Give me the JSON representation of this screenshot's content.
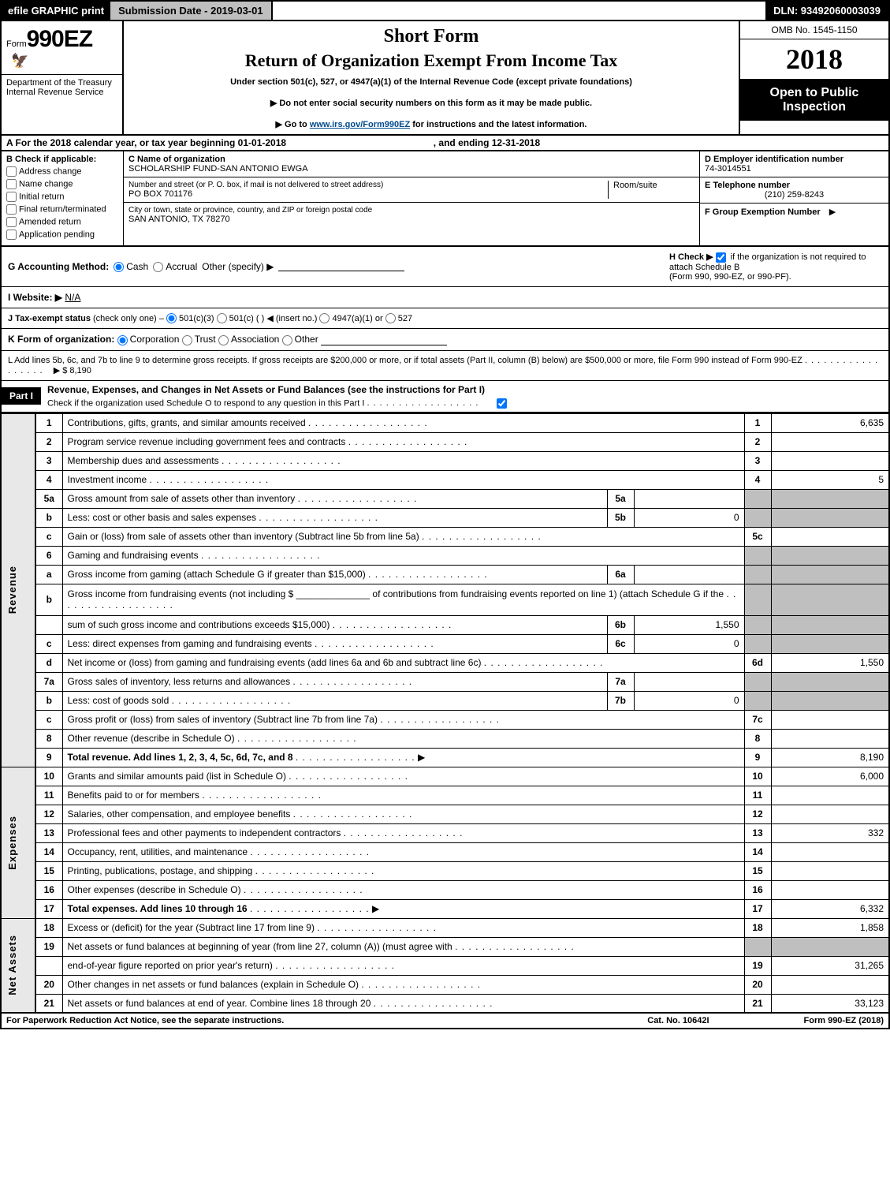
{
  "topbar": {
    "efile": "efile GRAPHIC print",
    "subdate_label": "Submission Date - 2019-03-01",
    "dln": "DLN: 93492060003039"
  },
  "header": {
    "form_word": "Form",
    "form_no": "990EZ",
    "short": "Short Form",
    "title": "Return of Organization Exempt From Income Tax",
    "under": "Under section 501(c), 527, or 4947(a)(1) of the Internal Revenue Code (except private foundations)",
    "ssn": "▶ Do not enter social security numbers on this form as it may be made public.",
    "goto_pre": "▶ Go to ",
    "goto_link": "www.irs.gov/Form990EZ",
    "goto_post": " for instructions and the latest information.",
    "dept1": "Department of the Treasury",
    "dept2": "Internal Revenue Service",
    "omb": "OMB No. 1545-1150",
    "year": "2018",
    "open": "Open to Public Inspection"
  },
  "rowA": {
    "text_pre": "A  For the 2018 calendar year, or tax year beginning ",
    "begin": "01-01-2018",
    "mid": ", and ending ",
    "end": "12-31-2018"
  },
  "boxB": {
    "hdr": "B  Check if applicable:",
    "items": [
      "Address change",
      "Name change",
      "Initial return",
      "Final return/terminated",
      "Amended return",
      "Application pending"
    ]
  },
  "boxC": {
    "label": "C Name of organization",
    "value": "SCHOLARSHIP FUND-SAN ANTONIO EWGA",
    "addr_label": "Number and street (or P. O. box, if mail is not delivered to street address)",
    "addr": "PO BOX 701176",
    "room_label": "Room/suite",
    "city_label": "City or town, state or province, country, and ZIP or foreign postal code",
    "city": "SAN ANTONIO, TX  78270"
  },
  "boxD": {
    "label": "D Employer identification number",
    "value": "74-3014551"
  },
  "boxE": {
    "label": "E Telephone number",
    "value": "(210) 259-8243"
  },
  "boxF": {
    "label": "F Group Exemption Number",
    "arrow": "▶"
  },
  "lineG": {
    "label": "G Accounting Method:",
    "cash": "Cash",
    "accrual": "Accrual",
    "other": "Other (specify) ▶"
  },
  "lineH": {
    "label": "H  Check ▶",
    "text1": "if the organization is not required to attach Schedule B",
    "text2": "(Form 990, 990-EZ, or 990-PF)."
  },
  "lineI": {
    "label": "I Website: ▶",
    "value": "N/A"
  },
  "lineJ": {
    "label": "J Tax-exempt status",
    "note": "(check only one) –",
    "o1": "501(c)(3)",
    "o2": "501(c) (   ) ◀ (insert no.)",
    "o3": "4947(a)(1) or",
    "o4": "527"
  },
  "lineK": {
    "label": "K Form of organization:",
    "o1": "Corporation",
    "o2": "Trust",
    "o3": "Association",
    "o4": "Other"
  },
  "lineL": {
    "text": "L Add lines 5b, 6c, and 7b to line 9 to determine gross receipts. If gross receipts are $200,000 or more, or if total assets (Part II, column (B) below) are $500,000 or more, file Form 990 instead of Form 990-EZ",
    "arrow": "▶ $ 8,190"
  },
  "part1": {
    "tag": "Part I",
    "title": "Revenue, Expenses, and Changes in Net Assets or Fund Balances (see the instructions for Part I)",
    "check_text": "Check if the organization used Schedule O to respond to any question in this Part I"
  },
  "sides": {
    "rev": "Revenue",
    "exp": "Expenses",
    "na": "Net Assets"
  },
  "rows": [
    {
      "ln": "1",
      "desc": "Contributions, gifts, grants, and similar amounts received",
      "num": "1",
      "val": "6,635"
    },
    {
      "ln": "2",
      "desc": "Program service revenue including government fees and contracts",
      "num": "2",
      "val": ""
    },
    {
      "ln": "3",
      "desc": "Membership dues and assessments",
      "num": "3",
      "val": ""
    },
    {
      "ln": "4",
      "desc": "Investment income",
      "num": "4",
      "val": "5"
    },
    {
      "ln": "5a",
      "desc": "Gross amount from sale of assets other than inventory",
      "sub": "5a",
      "subval": "",
      "grey": true
    },
    {
      "ln": "b",
      "desc": "Less: cost or other basis and sales expenses",
      "sub": "5b",
      "subval": "0",
      "grey": true
    },
    {
      "ln": "c",
      "desc": "Gain or (loss) from sale of assets other than inventory (Subtract line 5b from line 5a)",
      "num": "5c",
      "val": ""
    },
    {
      "ln": "6",
      "desc": "Gaming and fundraising events",
      "grey": true,
      "noNum": true
    },
    {
      "ln": "a",
      "desc": "Gross income from gaming (attach Schedule G if greater than $15,000)",
      "sub": "6a",
      "subval": "",
      "grey": true
    },
    {
      "ln": "b",
      "desc": "Gross income from fundraising events (not including $ ______________ of contributions from fundraising events reported on line 1) (attach Schedule G if the",
      "grey": true,
      "noNum": true,
      "tall": true
    },
    {
      "ln": "",
      "desc": "sum of such gross income and contributions exceeds $15,000)",
      "sub": "6b",
      "subval": "1,550",
      "grey": true
    },
    {
      "ln": "c",
      "desc": "Less: direct expenses from gaming and fundraising events",
      "sub": "6c",
      "subval": "0",
      "grey": true
    },
    {
      "ln": "d",
      "desc": "Net income or (loss) from gaming and fundraising events (add lines 6a and 6b and subtract line 6c)",
      "num": "6d",
      "val": "1,550"
    },
    {
      "ln": "7a",
      "desc": "Gross sales of inventory, less returns and allowances",
      "sub": "7a",
      "subval": "",
      "grey": true
    },
    {
      "ln": "b",
      "desc": "Less: cost of goods sold",
      "sub": "7b",
      "subval": "0",
      "grey": true
    },
    {
      "ln": "c",
      "desc": "Gross profit or (loss) from sales of inventory (Subtract line 7b from line 7a)",
      "num": "7c",
      "val": ""
    },
    {
      "ln": "8",
      "desc": "Other revenue (describe in Schedule O)",
      "num": "8",
      "val": ""
    },
    {
      "ln": "9",
      "desc": "Total revenue. Add lines 1, 2, 3, 4, 5c, 6d, 7c, and 8",
      "num": "9",
      "val": "8,190",
      "bold": true,
      "arrow": true
    }
  ],
  "exp_rows": [
    {
      "ln": "10",
      "desc": "Grants and similar amounts paid (list in Schedule O)",
      "num": "10",
      "val": "6,000"
    },
    {
      "ln": "11",
      "desc": "Benefits paid to or for members",
      "num": "11",
      "val": ""
    },
    {
      "ln": "12",
      "desc": "Salaries, other compensation, and employee benefits",
      "num": "12",
      "val": ""
    },
    {
      "ln": "13",
      "desc": "Professional fees and other payments to independent contractors",
      "num": "13",
      "val": "332"
    },
    {
      "ln": "14",
      "desc": "Occupancy, rent, utilities, and maintenance",
      "num": "14",
      "val": ""
    },
    {
      "ln": "15",
      "desc": "Printing, publications, postage, and shipping",
      "num": "15",
      "val": ""
    },
    {
      "ln": "16",
      "desc": "Other expenses (describe in Schedule O)",
      "num": "16",
      "val": ""
    },
    {
      "ln": "17",
      "desc": "Total expenses. Add lines 10 through 16",
      "num": "17",
      "val": "6,332",
      "bold": true,
      "arrow": true
    }
  ],
  "na_rows": [
    {
      "ln": "18",
      "desc": "Excess or (deficit) for the year (Subtract line 17 from line 9)",
      "num": "18",
      "val": "1,858"
    },
    {
      "ln": "19",
      "desc": "Net assets or fund balances at beginning of year (from line 27, column (A)) (must agree with",
      "noNum": true,
      "grey": true
    },
    {
      "ln": "",
      "desc": "end-of-year figure reported on prior year's return)",
      "num": "19",
      "val": "31,265"
    },
    {
      "ln": "20",
      "desc": "Other changes in net assets or fund balances (explain in Schedule O)",
      "num": "20",
      "val": ""
    },
    {
      "ln": "21",
      "desc": "Net assets or fund balances at end of year. Combine lines 18 through 20",
      "num": "21",
      "val": "33,123"
    }
  ],
  "footer": {
    "left": "For Paperwork Reduction Act Notice, see the separate instructions.",
    "mid": "Cat. No. 10642I",
    "right": "Form 990-EZ (2018)"
  }
}
